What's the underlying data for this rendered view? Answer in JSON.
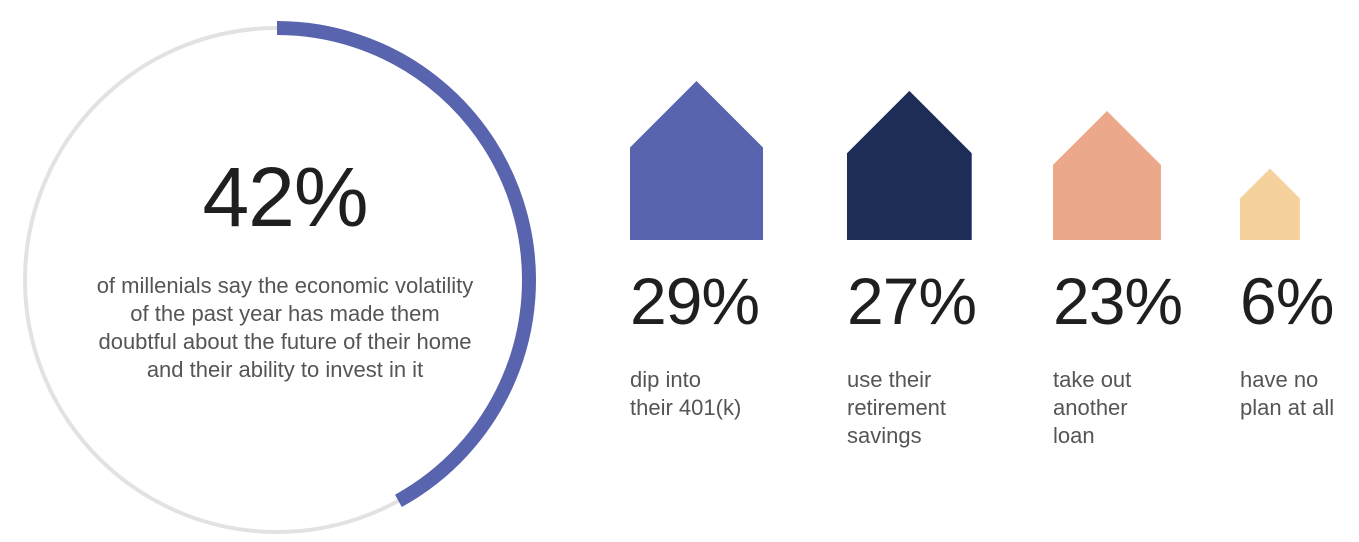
{
  "headline": {
    "value": "42%",
    "fraction": 0.42,
    "description": "of millenials say the economic volatility of the past year has made them doubtful about the future of their home and their ability to invest in it"
  },
  "colors": {
    "ring_track": "#e2e2e2",
    "ring_progress": "#5864ad",
    "text_dark": "#1f1f1f",
    "text_muted": "#555555"
  },
  "chart_data": {
    "type": "bar",
    "categories": [
      "dip into\ntheir 401(k)",
      "use their\nretirement\nsavings",
      "take out\nanother\nloan",
      "have no\nplan at all"
    ],
    "values": [
      29,
      27,
      23,
      6
    ],
    "value_labels": [
      "29%",
      "27%",
      "23%",
      "6%"
    ],
    "colors": [
      "#5864ad",
      "#1d2d57",
      "#eca88a",
      "#f5d29d"
    ],
    "unit": "%"
  }
}
